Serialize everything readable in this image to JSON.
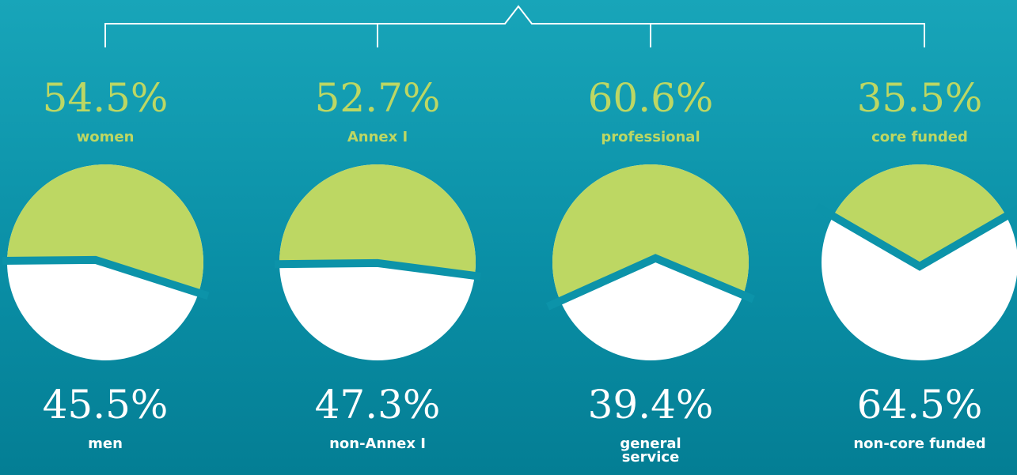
{
  "chart_data": [
    {
      "type": "pie",
      "categories": [
        "women",
        "men"
      ],
      "values": [
        54.5,
        45.5
      ],
      "value_labels": [
        "54.5%",
        "45.5%"
      ],
      "colors": [
        "#bdd763",
        "#ffffff"
      ]
    },
    {
      "type": "pie",
      "categories": [
        "Annex I",
        "non-Annex I"
      ],
      "values": [
        52.7,
        47.3
      ],
      "value_labels": [
        "52.7%",
        "47.3%"
      ],
      "colors": [
        "#bdd763",
        "#ffffff"
      ]
    },
    {
      "type": "pie",
      "categories": [
        "professional",
        "general service"
      ],
      "values": [
        60.6,
        39.4
      ],
      "value_labels": [
        "60.6%",
        "39.4%"
      ],
      "colors": [
        "#bdd763",
        "#ffffff"
      ]
    },
    {
      "type": "pie",
      "categories": [
        "core funded",
        "non-core funded"
      ],
      "values": [
        35.5,
        64.5
      ],
      "value_labels": [
        "35.5%",
        "64.5%"
      ],
      "colors": [
        "#bdd763",
        "#ffffff"
      ]
    }
  ]
}
